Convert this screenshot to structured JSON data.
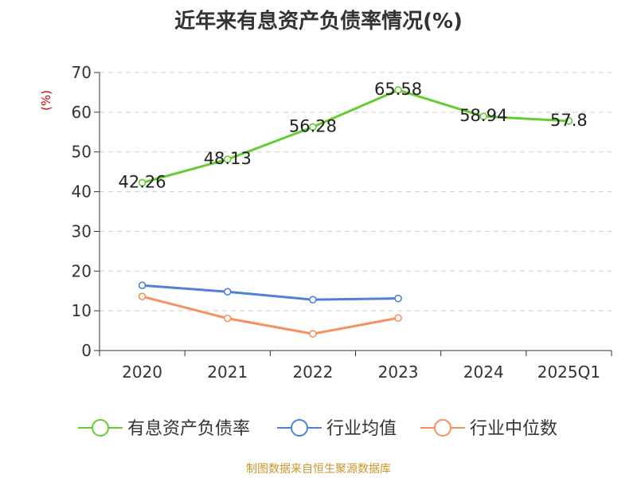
{
  "chart_data": {
    "type": "line",
    "title": "近年来有息资产负债率情况(%)",
    "xlabel": "",
    "ylabel": "(%)",
    "categories": [
      "2020",
      "2021",
      "2022",
      "2023",
      "2024",
      "2025Q1"
    ],
    "ylim": [
      0,
      70
    ],
    "yticks": [
      0,
      10,
      20,
      30,
      40,
      50,
      60,
      70
    ],
    "grid": true,
    "legend_position": "bottom",
    "series": [
      {
        "name": "有息资产负债率",
        "color": "#66cc33",
        "values": [
          42.26,
          48.13,
          56.28,
          65.58,
          58.94,
          57.8
        ],
        "show_labels": true
      },
      {
        "name": "行业均值",
        "color": "#4f81d9",
        "values": [
          16.4,
          14.8,
          12.8,
          13.1,
          null,
          null
        ],
        "show_labels": false
      },
      {
        "name": "行业中位数",
        "color": "#f5915e",
        "values": [
          13.6,
          8.1,
          4.2,
          8.2,
          null,
          null
        ],
        "show_labels": false
      }
    ]
  },
  "source": "制图数据来自恒生聚源数据库"
}
